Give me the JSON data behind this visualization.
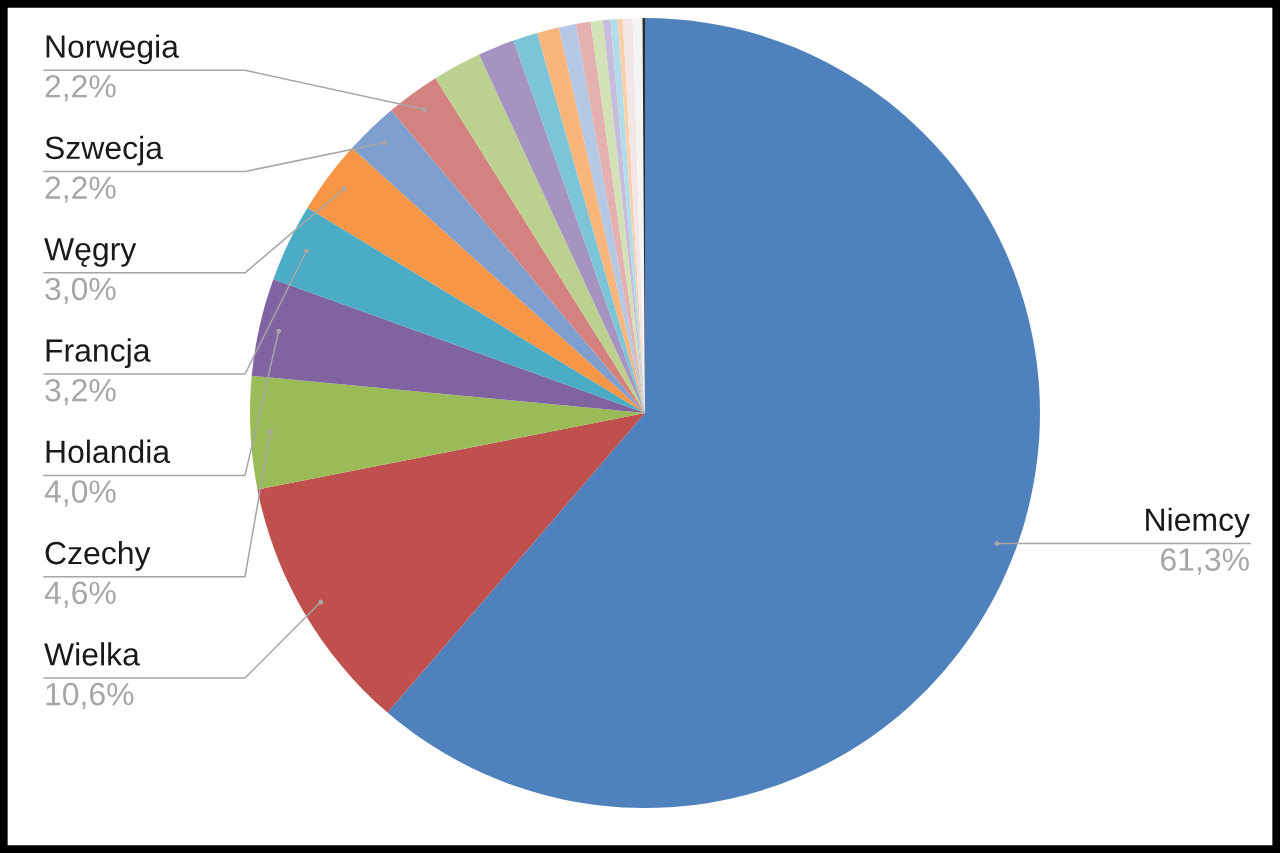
{
  "chart_data": {
    "type": "pie",
    "categories": [
      "Niemcy",
      "Wielka",
      "Czechy",
      "Holandia",
      "Francja",
      "Węgry",
      "Szwecja",
      "Norwegia",
      null,
      null,
      null,
      null,
      null,
      null,
      null,
      null,
      null,
      null,
      null,
      null,
      null
    ],
    "values": [
      61.3,
      10.6,
      4.6,
      4.0,
      3.2,
      3.0,
      2.2,
      2.2,
      2.0,
      1.5,
      1.0,
      0.9,
      0.7,
      0.6,
      0.5,
      0.3,
      0.3,
      0.2,
      0.4,
      0.4,
      0.1
    ],
    "value_labels": [
      "61,3%",
      "10,6%",
      "4,6%",
      "4,0%",
      "3,2%",
      "3,0%",
      "2,2%",
      "2,2%",
      null,
      null,
      null,
      null,
      null,
      null,
      null,
      null,
      null,
      null,
      null,
      null,
      null
    ],
    "colors": [
      "#4f81bd",
      "#c0504d",
      "#9bbb59",
      "#8064a2",
      "#4bacc6",
      "#f79646",
      "#7f9fcf",
      "#d4827f",
      "#bcd18f",
      "#a593c1",
      "#7cc5d8",
      "#f9b57a",
      "#b4c7e3",
      "#e4b1b0",
      "#d2e1b6",
      "#c7bcdc",
      "#b2dce8",
      "#fbd0a8",
      "#f2e6e6",
      "#f4f4f4",
      "#2b2b2b"
    ]
  }
}
